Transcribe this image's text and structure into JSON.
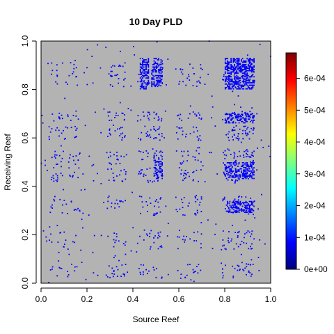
{
  "chart_data": {
    "type": "heatmap",
    "title": "10 Day PLD",
    "xlabel": "Source Reef",
    "ylabel": "Receiving Reef",
    "xlim": [
      0.0,
      1.0
    ],
    "ylim": [
      0.0,
      1.0
    ],
    "x_ticks": [
      "0.0",
      "0.2",
      "0.4",
      "0.6",
      "0.8",
      "1.0"
    ],
    "y_ticks": [
      "0.0",
      "0.2",
      "0.4",
      "0.6",
      "0.8",
      "1.0"
    ],
    "grid": false,
    "background_color": "#b3b3b3",
    "point_color": "#0000ff",
    "colorbar": {
      "min": 0,
      "max": 0.00068,
      "tick_labels": [
        "0e+00",
        "1e-04",
        "2e-04",
        "3e-04",
        "4e-04",
        "5e-04",
        "6e-04"
      ],
      "tick_values": [
        0,
        0.0001,
        0.0002,
        0.0003,
        0.0004,
        0.0005,
        0.0006
      ],
      "colors": [
        "#00007f",
        "#0000ff",
        "#007fff",
        "#00ffff",
        "#7fff7f",
        "#ffff00",
        "#ff7f00",
        "#ff0000",
        "#7f0000"
      ]
    },
    "source_clusters": [
      {
        "center": 0.06,
        "halfwidth": 0.03,
        "weight": 0.6
      },
      {
        "center": 0.13,
        "halfwidth": 0.04,
        "weight": 0.7
      },
      {
        "center": 0.31,
        "halfwidth": 0.02,
        "weight": 0.6
      },
      {
        "center": 0.35,
        "halfwidth": 0.02,
        "weight": 0.6
      },
      {
        "center": 0.45,
        "halfwidth": 0.03,
        "weight": 0.8
      },
      {
        "center": 0.51,
        "halfwidth": 0.02,
        "weight": 1.0
      },
      {
        "center": 0.62,
        "halfwidth": 0.03,
        "weight": 0.7
      },
      {
        "center": 0.68,
        "halfwidth": 0.02,
        "weight": 0.6
      },
      {
        "center": 0.82,
        "halfwidth": 0.03,
        "weight": 1.1
      },
      {
        "center": 0.87,
        "halfwidth": 0.03,
        "weight": 1.3
      },
      {
        "center": 0.91,
        "halfwidth": 0.02,
        "weight": 1.3
      }
    ],
    "receiving_clusters": [
      {
        "center": 0.05,
        "halfwidth": 0.03,
        "weight": 0.5
      },
      {
        "center": 0.18,
        "halfwidth": 0.04,
        "weight": 0.7
      },
      {
        "center": 0.32,
        "halfwidth": 0.04,
        "weight": 0.9
      },
      {
        "center": 0.45,
        "halfwidth": 0.03,
        "weight": 1.0
      },
      {
        "center": 0.52,
        "halfwidth": 0.03,
        "weight": 0.9
      },
      {
        "center": 0.62,
        "halfwidth": 0.03,
        "weight": 0.9
      },
      {
        "center": 0.69,
        "halfwidth": 0.02,
        "weight": 0.8
      },
      {
        "center": 0.86,
        "halfwidth": 0.05,
        "weight": 1.3
      }
    ],
    "dense_blocks": [
      {
        "x": [
          0.8,
          0.93
        ],
        "y": [
          0.8,
          0.93
        ],
        "density": 0.55
      },
      {
        "x": [
          0.8,
          0.93
        ],
        "y": [
          0.43,
          0.5
        ],
        "density": 0.45
      },
      {
        "x": [
          0.8,
          0.93
        ],
        "y": [
          0.29,
          0.34
        ],
        "density": 0.4
      },
      {
        "x": [
          0.8,
          0.93
        ],
        "y": [
          0.66,
          0.7
        ],
        "density": 0.4
      },
      {
        "x": [
          0.48,
          0.53
        ],
        "y": [
          0.81,
          0.93
        ],
        "density": 0.45
      },
      {
        "x": [
          0.43,
          0.47
        ],
        "y": [
          0.8,
          0.93
        ],
        "density": 0.4
      },
      {
        "x": [
          0.49,
          0.53
        ],
        "y": [
          0.43,
          0.53
        ],
        "density": 0.35
      }
    ]
  }
}
